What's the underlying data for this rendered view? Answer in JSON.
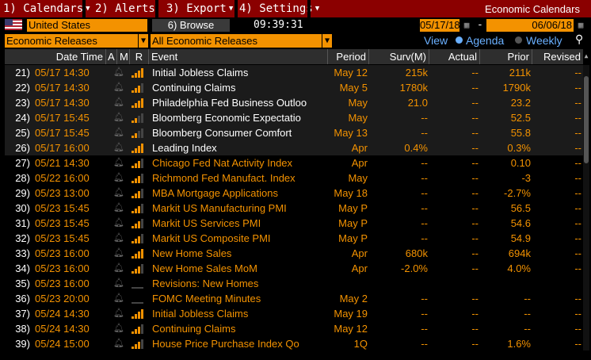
{
  "menu": {
    "items": [
      {
        "label": "1) Calendars"
      },
      {
        "label": "2) Alerts"
      },
      {
        "label": "3) Export"
      },
      {
        "label": "4) Settings"
      }
    ],
    "title": "Economic Calendars"
  },
  "toolbar": {
    "country": "United States",
    "browse_label": "6) Browse",
    "clock": "09:39:31",
    "date_from": "05/17/18",
    "date_sep": "-",
    "date_to": "06/06/18"
  },
  "filters": {
    "category": "Economic Releases",
    "subcategory": "All Economic Releases",
    "view_label": "View",
    "view_options": [
      {
        "label": "Agenda",
        "selected": true
      },
      {
        "label": "Weekly",
        "selected": false
      }
    ]
  },
  "table": {
    "columns": [
      "Date Time",
      "A",
      "M",
      "R",
      "Event",
      "Period",
      "Surv(M)",
      "Actual",
      "Prior",
      "Revised"
    ],
    "rows": [
      {
        "num": "21)",
        "dt": "05/17 14:30",
        "rank": 4,
        "event": "Initial Jobless Claims",
        "period": "May 12",
        "surv": "215k",
        "actual": "--",
        "prior": "211k",
        "revised": "--",
        "past": true
      },
      {
        "num": "22)",
        "dt": "05/17 14:30",
        "rank": 3,
        "event": "Continuing Claims",
        "period": "May 5",
        "surv": "1780k",
        "actual": "--",
        "prior": "1790k",
        "revised": "--",
        "past": true
      },
      {
        "num": "23)",
        "dt": "05/17 14:30",
        "rank": 4,
        "event": "Philadelphia Fed Business Outloo",
        "period": "May",
        "surv": "21.0",
        "actual": "--",
        "prior": "23.2",
        "revised": "--",
        "past": true
      },
      {
        "num": "24)",
        "dt": "05/17 15:45",
        "rank": 2,
        "event": "Bloomberg Economic Expectatio",
        "period": "May",
        "surv": "--",
        "actual": "--",
        "prior": "52.5",
        "revised": "--",
        "past": true
      },
      {
        "num": "25)",
        "dt": "05/17 15:45",
        "rank": 2,
        "event": "Bloomberg Consumer Comfort",
        "period": "May 13",
        "surv": "--",
        "actual": "--",
        "prior": "55.8",
        "revised": "--",
        "past": true
      },
      {
        "num": "26)",
        "dt": "05/17 16:00",
        "rank": 4,
        "event": "Leading Index",
        "period": "Apr",
        "surv": "0.4%",
        "actual": "--",
        "prior": "0.3%",
        "revised": "--",
        "past": true
      },
      {
        "num": "27)",
        "dt": "05/21 14:30",
        "rank": 3,
        "event": "Chicago Fed Nat Activity Index",
        "period": "Apr",
        "surv": "--",
        "actual": "--",
        "prior": "0.10",
        "revised": "--",
        "past": false
      },
      {
        "num": "28)",
        "dt": "05/22 16:00",
        "rank": 3,
        "event": "Richmond Fed Manufact. Index",
        "period": "May",
        "surv": "--",
        "actual": "--",
        "prior": "-3",
        "revised": "--",
        "past": false
      },
      {
        "num": "29)",
        "dt": "05/23 13:00",
        "rank": 3,
        "event": "MBA Mortgage Applications",
        "period": "May 18",
        "surv": "--",
        "actual": "--",
        "prior": "-2.7%",
        "revised": "--",
        "past": false
      },
      {
        "num": "30)",
        "dt": "05/23 15:45",
        "rank": 3,
        "event": "Markit US Manufacturing PMI",
        "period": "May P",
        "surv": "--",
        "actual": "--",
        "prior": "56.5",
        "revised": "--",
        "past": false
      },
      {
        "num": "31)",
        "dt": "05/23 15:45",
        "rank": 3,
        "event": "Markit US Services PMI",
        "period": "May P",
        "surv": "--",
        "actual": "--",
        "prior": "54.6",
        "revised": "--",
        "past": false
      },
      {
        "num": "32)",
        "dt": "05/23 15:45",
        "rank": 3,
        "event": "Markit US Composite PMI",
        "period": "May P",
        "surv": "--",
        "actual": "--",
        "prior": "54.9",
        "revised": "--",
        "past": false
      },
      {
        "num": "33)",
        "dt": "05/23 16:00",
        "rank": 4,
        "event": "New Home Sales",
        "period": "Apr",
        "surv": "680k",
        "actual": "--",
        "prior": "694k",
        "revised": "--",
        "past": false
      },
      {
        "num": "34)",
        "dt": "05/23 16:00",
        "rank": 3,
        "event": "New Home Sales MoM",
        "period": "Apr",
        "surv": "-2.0%",
        "actual": "--",
        "prior": "4.0%",
        "revised": "--",
        "past": false
      },
      {
        "num": "35)",
        "dt": "05/23 16:00",
        "rank": 0,
        "event": "Revisions: New Homes",
        "period": "",
        "surv": "",
        "actual": "",
        "prior": "",
        "revised": "",
        "past": false
      },
      {
        "num": "36)",
        "dt": "05/23 20:00",
        "rank": 0,
        "event": "FOMC Meeting Minutes",
        "period": "May 2",
        "surv": "--",
        "actual": "--",
        "prior": "--",
        "revised": "--",
        "past": false
      },
      {
        "num": "37)",
        "dt": "05/24 14:30",
        "rank": 4,
        "event": "Initial Jobless Claims",
        "period": "May 19",
        "surv": "--",
        "actual": "--",
        "prior": "--",
        "revised": "--",
        "past": false
      },
      {
        "num": "38)",
        "dt": "05/24 14:30",
        "rank": 3,
        "event": "Continuing Claims",
        "period": "May 12",
        "surv": "--",
        "actual": "--",
        "prior": "--",
        "revised": "--",
        "past": false
      },
      {
        "num": "39)",
        "dt": "05/24 15:00",
        "rank": 3,
        "event": "House Price Purchase Index Qo",
        "period": "1Q",
        "surv": "--",
        "actual": "--",
        "prior": "1.6%",
        "revised": "--",
        "past": false
      }
    ]
  },
  "colors": {
    "accent": "#f39200",
    "menubar": "#8b0000",
    "link": "#6ab0ff"
  }
}
